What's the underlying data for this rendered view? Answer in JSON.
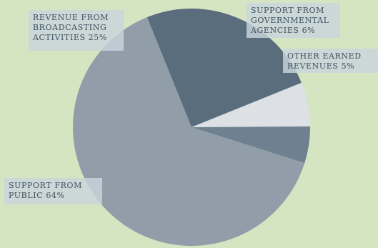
{
  "chart_data": {
    "type": "pie",
    "slices": [
      {
        "label_lines": [
          "REVENUE FROM",
          "BROADCASTING",
          "ACTIVITIES 25%"
        ],
        "value": 25,
        "color": "#5a6d7d"
      },
      {
        "label_lines": [
          "SUPPORT FROM",
          "GOVERNMENTAL",
          "AGENCIES 6%"
        ],
        "value": 6,
        "color": "#dde1e5"
      },
      {
        "label_lines": [
          "OTHER EARNED",
          "REVENUES 5%"
        ],
        "value": 5,
        "color": "#6f8190"
      },
      {
        "label_lines": [
          "SUPPORT FROM",
          "PUBLIC 64%"
        ],
        "value": 64,
        "color": "#919ea9"
      }
    ],
    "background": "#d5e5c1"
  }
}
